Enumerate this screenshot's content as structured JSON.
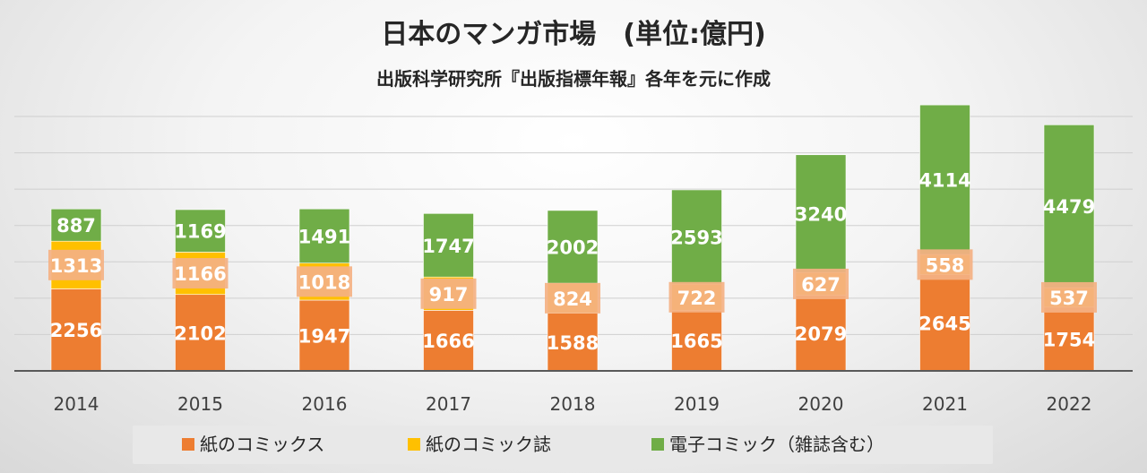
{
  "chart_data": {
    "type": "bar",
    "stacked": true,
    "title": "日本のマンガ市場　(単位:億円)",
    "subtitle": "出版科学研究所『出版指標年報』各年を元に作成",
    "categories": [
      "2014",
      "2015",
      "2016",
      "2017",
      "2018",
      "2019",
      "2020",
      "2021",
      "2022"
    ],
    "series": [
      {
        "name": "紙のコミックス",
        "color": "#ed7d31",
        "values": [
          2256,
          2102,
          1947,
          1666,
          1588,
          1665,
          2079,
          2645,
          1754
        ]
      },
      {
        "name": "紙のコミック誌",
        "color": "#ffc000",
        "values": [
          1313,
          1166,
          1018,
          917,
          824,
          722,
          627,
          558,
          537
        ]
      },
      {
        "name": "電子コミック（雑誌含む）",
        "color": "#70ad47",
        "values": [
          887,
          1169,
          1491,
          1747,
          2002,
          2593,
          3240,
          4114,
          4479
        ]
      }
    ],
    "ylim": [
      0,
      7000
    ],
    "grid": true,
    "legend": "bottom"
  }
}
